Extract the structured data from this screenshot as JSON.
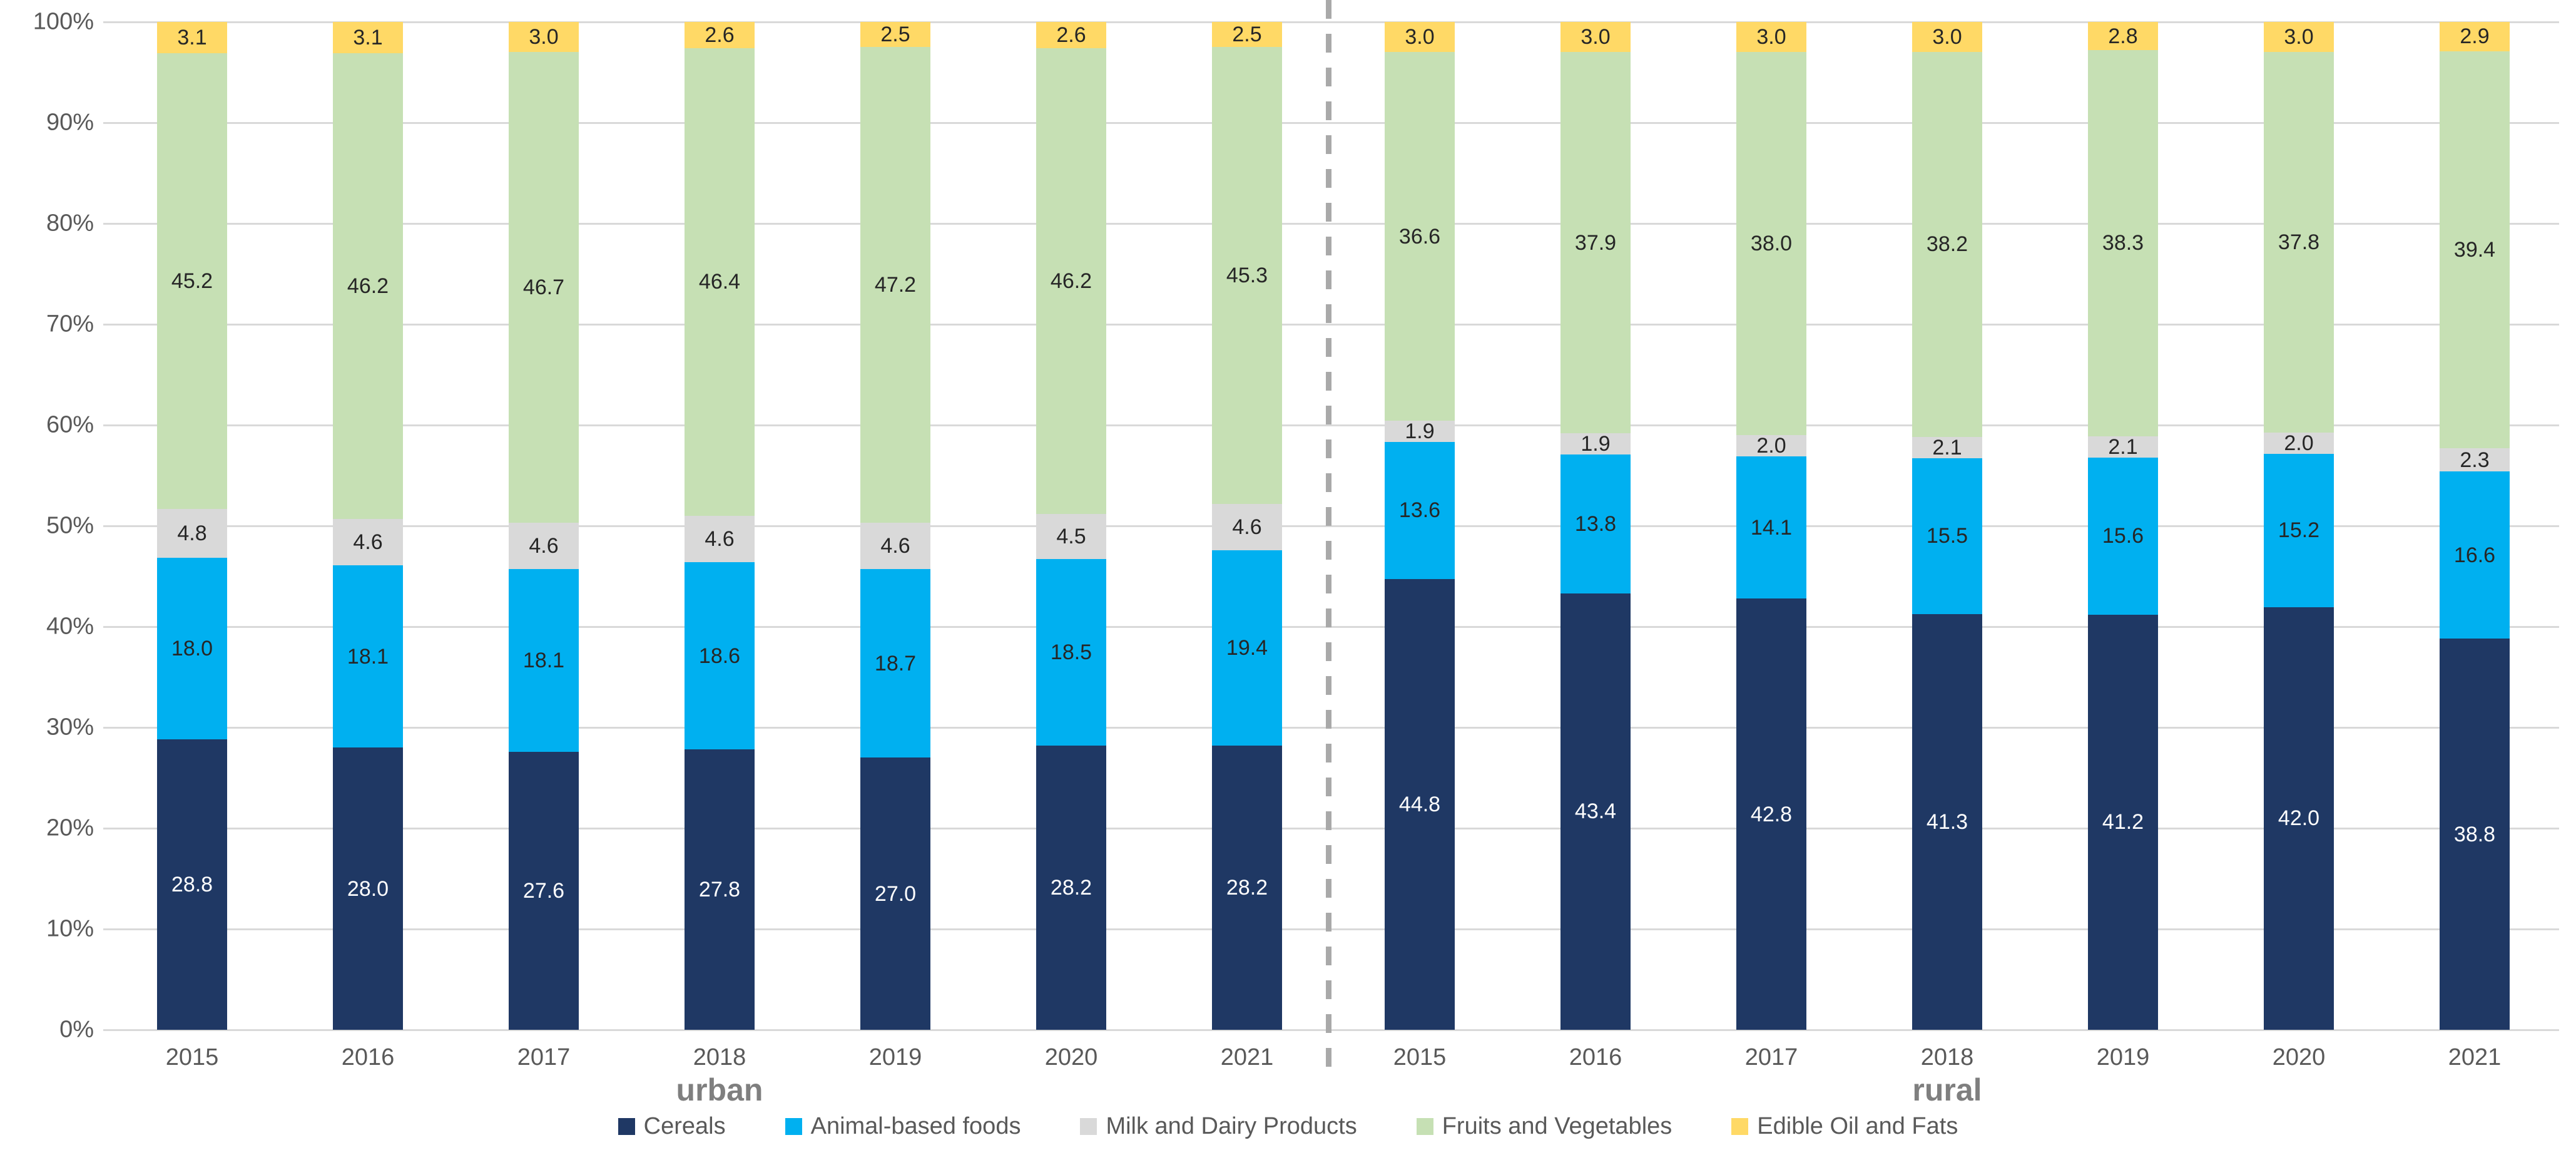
{
  "chart_data": {
    "type": "bar",
    "stacked": true,
    "percent_stacked": true,
    "grid": true,
    "legend_position": "bottom",
    "ylim": [
      0,
      100
    ],
    "y_ticks": [
      "100%",
      "90%",
      "80%",
      "70%",
      "60%",
      "50%",
      "40%",
      "30%",
      "20%",
      "10%",
      "0%"
    ],
    "groups": [
      {
        "label": "urban",
        "categories": [
          "2015",
          "2016",
          "2017",
          "2018",
          "2019",
          "2020",
          "2021"
        ]
      },
      {
        "label": "rural",
        "categories": [
          "2015",
          "2016",
          "2017",
          "2018",
          "2019",
          "2020",
          "2021"
        ]
      }
    ],
    "series": [
      {
        "name": "Cereals",
        "color": "#1F3864",
        "label_color": "#FFFFFF",
        "urban": [
          28.8,
          28.0,
          27.6,
          27.8,
          27.0,
          28.2,
          28.2
        ],
        "rural": [
          44.8,
          43.4,
          42.8,
          41.3,
          41.2,
          42.0,
          38.8
        ]
      },
      {
        "name": "Animal-based foods",
        "color": "#00B0F0",
        "label_color": "#262626",
        "urban": [
          18.0,
          18.1,
          18.1,
          18.6,
          18.7,
          18.5,
          19.4
        ],
        "rural": [
          13.6,
          13.8,
          14.1,
          15.5,
          15.6,
          15.2,
          16.6
        ]
      },
      {
        "name": "Milk and Dairy Products",
        "color": "#D9D9D9",
        "label_color": "#262626",
        "urban": [
          4.8,
          4.6,
          4.6,
          4.6,
          4.6,
          4.5,
          4.6
        ],
        "rural": [
          1.9,
          1.9,
          2.0,
          2.1,
          2.1,
          2.0,
          2.3
        ]
      },
      {
        "name": "Fruits and Vegetables",
        "color": "#C6E0B4",
        "label_color": "#262626",
        "urban": [
          45.2,
          46.2,
          46.7,
          46.4,
          47.2,
          46.2,
          45.3
        ],
        "rural": [
          36.6,
          37.9,
          38.0,
          38.2,
          38.3,
          37.8,
          39.4
        ]
      },
      {
        "name": "Edible Oil and Fats",
        "color": "#FFD966",
        "label_color": "#262626",
        "urban": [
          3.1,
          3.1,
          3.0,
          2.6,
          2.5,
          2.6,
          2.5
        ],
        "rural": [
          3.0,
          3.0,
          3.0,
          3.0,
          2.8,
          3.0,
          2.9
        ]
      }
    ],
    "colors": {
      "gridline": "#D9D9D9",
      "axis_text": "#595959",
      "group_label_text": "#7F7F7F",
      "divider": "#A9A9A9"
    }
  }
}
